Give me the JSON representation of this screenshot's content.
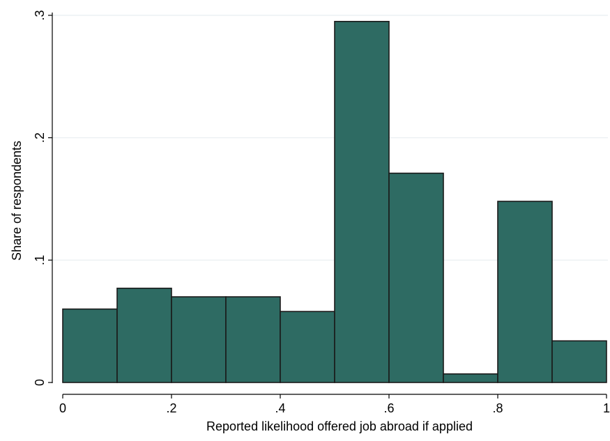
{
  "chart_data": {
    "type": "bar",
    "title": "",
    "xlabel": "Reported likelihood offered job abroad if applied",
    "ylabel": "Share of respondents",
    "xlim": [
      0,
      1
    ],
    "ylim": [
      0,
      0.3
    ],
    "grid": true,
    "legend": "none",
    "bar_color": "#2e6b63",
    "bar_edge_color": "#1a1a1a",
    "bins": [
      {
        "x0": 0.0,
        "x1": 0.1,
        "value": 0.06
      },
      {
        "x0": 0.1,
        "x1": 0.2,
        "value": 0.077
      },
      {
        "x0": 0.2,
        "x1": 0.3,
        "value": 0.07
      },
      {
        "x0": 0.3,
        "x1": 0.4,
        "value": 0.07
      },
      {
        "x0": 0.4,
        "x1": 0.5,
        "value": 0.058
      },
      {
        "x0": 0.5,
        "x1": 0.6,
        "value": 0.295
      },
      {
        "x0": 0.6,
        "x1": 0.7,
        "value": 0.171
      },
      {
        "x0": 0.7,
        "x1": 0.8,
        "value": 0.007
      },
      {
        "x0": 0.8,
        "x1": 0.9,
        "value": 0.148
      },
      {
        "x0": 0.9,
        "x1": 1.0,
        "value": 0.034
      }
    ],
    "x_ticks": [
      {
        "value": 0,
        "label": "0"
      },
      {
        "value": 0.2,
        "label": ".2"
      },
      {
        "value": 0.4,
        "label": ".4"
      },
      {
        "value": 0.6,
        "label": ".6"
      },
      {
        "value": 0.8,
        "label": ".8"
      },
      {
        "value": 1,
        "label": "1"
      }
    ],
    "y_ticks": [
      {
        "value": 0,
        "label": "0"
      },
      {
        "value": 0.1,
        "label": ".1"
      },
      {
        "value": 0.2,
        "label": ".2"
      },
      {
        "value": 0.3,
        "label": ".3"
      }
    ]
  }
}
